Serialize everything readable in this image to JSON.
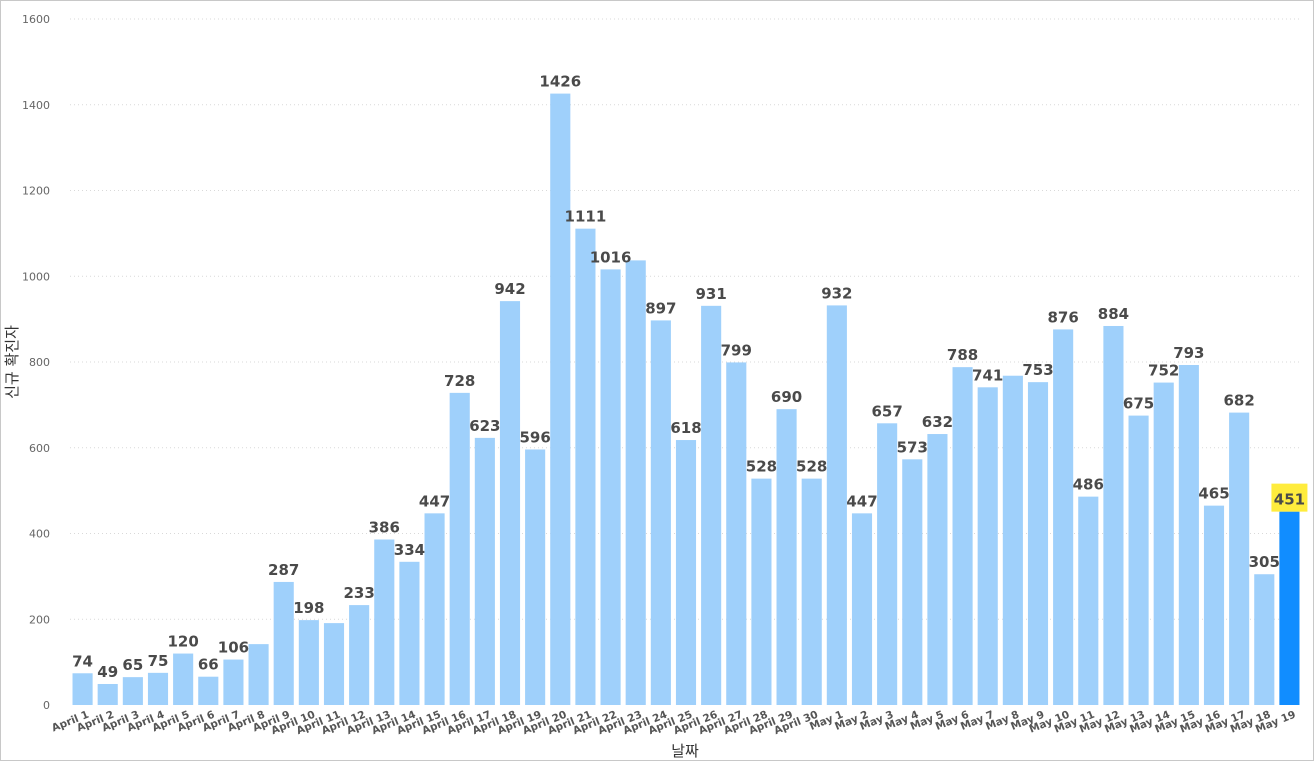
{
  "chart_data": {
    "type": "bar",
    "title": "",
    "xlabel": "날짜",
    "ylabel": "신규 확진자",
    "ylim": [
      0,
      1600
    ],
    "yticks": [
      0,
      200,
      400,
      600,
      800,
      1000,
      1200,
      1400,
      1600
    ],
    "grid": true,
    "colors": {
      "bar": "#9fd0fb",
      "highlight_bar": "#118dff",
      "highlight_label_bg": "#ffec3d"
    },
    "highlight_category": "May 19",
    "categories": [
      "April 1",
      "April 2",
      "April 3",
      "April 4",
      "April 5",
      "April 6",
      "April 7",
      "April 8",
      "April 9",
      "April 10",
      "April 11",
      "April 12",
      "April 13",
      "April 14",
      "April 15",
      "April 16",
      "April 17",
      "April 18",
      "April 19",
      "April 20",
      "April 21",
      "April 22",
      "April 23",
      "April 24",
      "April 25",
      "April 26",
      "April 27",
      "April 28",
      "April 29",
      "April 30",
      "May 1",
      "May 2",
      "May 3",
      "May 4",
      "May 5",
      "May 6",
      "May 7",
      "May 8",
      "May 9",
      "May 10",
      "May 11",
      "May 12",
      "May 13",
      "May 14",
      "May 15",
      "May 16",
      "May 17",
      "May 18",
      "May 19"
    ],
    "values": [
      74,
      49,
      65,
      75,
      120,
      66,
      106,
      142,
      287,
      198,
      191,
      233,
      386,
      334,
      447,
      728,
      623,
      942,
      596,
      1426,
      1111,
      1016,
      1037,
      897,
      618,
      931,
      799,
      528,
      690,
      528,
      932,
      447,
      657,
      573,
      632,
      788,
      741,
      768,
      753,
      876,
      486,
      884,
      675,
      752,
      793,
      465,
      682,
      305,
      451
    ],
    "data_labels": [
      "74",
      "49",
      "65",
      "75",
      "120",
      "66",
      "106",
      "",
      "287",
      "198",
      "",
      "233",
      "386",
      "334",
      "447",
      "728",
      "623",
      "942",
      "596",
      "1426",
      "1111",
      "1016",
      "",
      "897",
      "618",
      "931",
      "799",
      "528",
      "690",
      "528",
      "932",
      "447",
      "657",
      "573",
      "632",
      "788",
      "741",
      "",
      "753",
      "876",
      "486",
      "884",
      "675",
      "752",
      "793",
      "465",
      "682",
      "305",
      "451"
    ]
  }
}
